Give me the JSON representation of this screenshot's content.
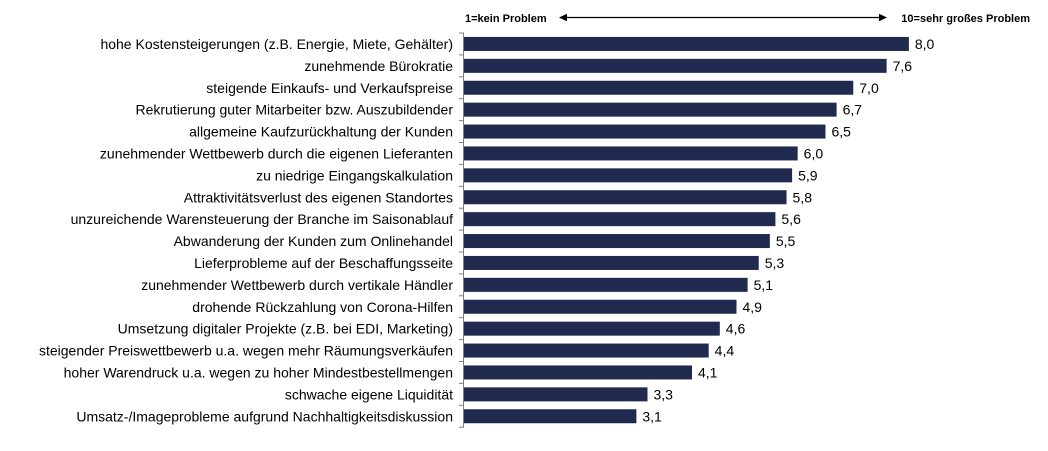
{
  "chart_data": {
    "type": "bar",
    "orientation": "horizontal",
    "scale_min_label": "1=kein Problem",
    "scale_max_label": "10=sehr großes Problem",
    "bar_color": "#1f2a4e",
    "xlim": [
      1,
      8.2
    ],
    "categories": [
      "hohe Kostensteigerungen (z.B. Energie, Miete, Gehälter)",
      "zunehmende Bürokratie",
      "steigende Einkaufs- und Verkaufspreise",
      "Rekrutierung guter Mitarbeiter bzw. Auszubildender",
      "allgemeine Kaufzurückhaltung der Kunden",
      "zunehmender Wettbewerb durch die eigenen Lieferanten",
      "zu niedrige Eingangskalkulation",
      "Attraktivitätsverlust des eigenen Standortes",
      "unzureichende Warensteuerung der Branche im Saisonablauf",
      "Abwanderung der Kunden zum Onlinehandel",
      "Lieferprobleme auf der Beschaffungsseite",
      "zunehmender Wettbewerb durch vertikale Händler",
      "drohende Rückzahlung von Corona-Hilfen",
      "Umsetzung digitaler Projekte (z.B. bei EDI, Marketing)",
      "steigender Preiswettbewerb u.a. wegen mehr Räumungsverkäufen",
      "hoher Warendruck u.a. wegen zu hoher Mindestbestellmengen",
      "schwache eigene Liquidität",
      "Umsatz-/Imageprobleme aufgrund Nachhaltigkeitsdiskussion"
    ],
    "values": [
      8.0,
      7.6,
      7.0,
      6.7,
      6.5,
      6.0,
      5.9,
      5.8,
      5.6,
      5.5,
      5.3,
      5.1,
      4.9,
      4.6,
      4.4,
      4.1,
      3.3,
      3.1
    ],
    "value_labels": [
      "8,0",
      "7,6",
      "7,0",
      "6,7",
      "6,5",
      "6,0",
      "5,9",
      "5,8",
      "5,6",
      "5,5",
      "5,3",
      "5,1",
      "4,9",
      "4,6",
      "4,4",
      "4,1",
      "3,3",
      "3,1"
    ]
  }
}
